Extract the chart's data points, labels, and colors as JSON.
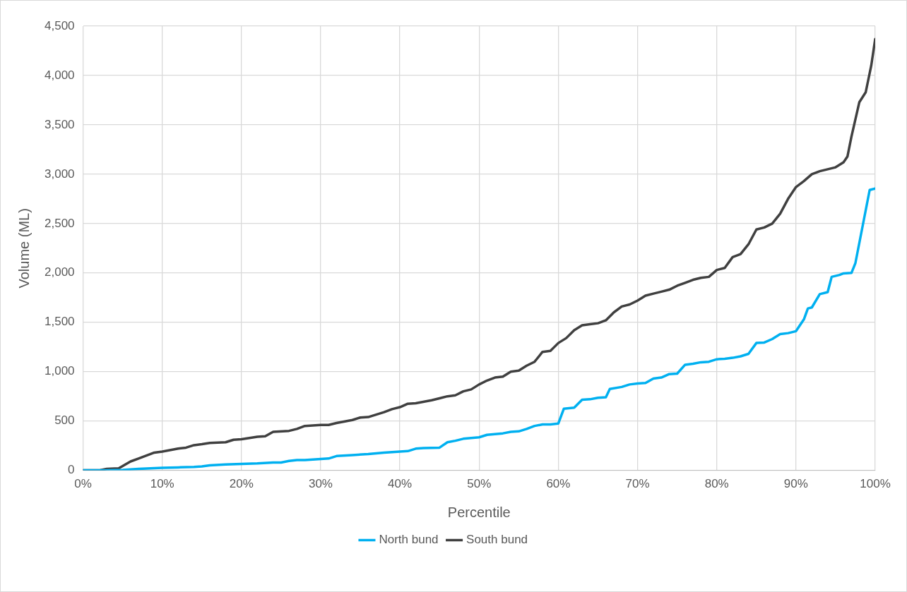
{
  "chart_data": {
    "type": "line",
    "xlabel": "Percentile",
    "ylabel": "Volume (ML)",
    "xlim": [
      0,
      100
    ],
    "xticks": [
      {
        "value": 0,
        "label": "0%"
      },
      {
        "value": 10,
        "label": "10%"
      },
      {
        "value": 20,
        "label": "20%"
      },
      {
        "value": 30,
        "label": "30%"
      },
      {
        "value": 40,
        "label": "40%"
      },
      {
        "value": 50,
        "label": "50%"
      },
      {
        "value": 60,
        "label": "60%"
      },
      {
        "value": 70,
        "label": "70%"
      },
      {
        "value": 80,
        "label": "80%"
      },
      {
        "value": 90,
        "label": "90%"
      },
      {
        "value": 100,
        "label": "100%"
      }
    ],
    "ylim": [
      0,
      4500
    ],
    "yticks": [
      0,
      500,
      {
        "value": 1000,
        "label": "1,000"
      },
      {
        "value": 1500,
        "label": "1,500"
      },
      {
        "value": 2000,
        "label": "2,000"
      },
      {
        "value": 2500,
        "label": "2,500"
      },
      {
        "value": 3000,
        "label": "3,000"
      },
      {
        "value": 3500,
        "label": "3,500"
      },
      {
        "value": 4000,
        "label": "4,000"
      },
      {
        "value": 4500,
        "label": "4,500"
      }
    ],
    "grid": true,
    "legend": "bottom",
    "marker": "none",
    "line_style": "solid",
    "series": [
      {
        "name": "North bund",
        "color": "#00b0f0",
        "x": [
          0,
          3,
          5,
          7,
          10,
          12,
          14,
          15,
          16,
          18,
          20,
          22,
          24,
          25,
          26,
          27,
          28,
          30,
          31,
          32,
          34,
          36,
          38,
          40,
          41,
          42,
          43,
          45,
          46,
          47,
          48,
          50,
          51,
          53,
          54,
          55,
          56,
          57,
          58,
          59,
          60,
          60.7,
          62,
          63,
          64,
          65,
          66,
          66.5,
          68,
          69,
          70,
          71,
          72,
          73,
          74,
          75,
          76,
          77,
          78,
          79,
          80,
          81,
          82,
          83,
          84,
          85,
          86,
          87,
          88,
          89,
          90,
          91,
          91.5,
          92,
          93,
          94,
          94.5,
          95.5,
          96,
          97,
          97.5,
          99.3,
          100
        ],
        "values": [
          0,
          0,
          5,
          15,
          25,
          30,
          35,
          40,
          50,
          60,
          65,
          70,
          80,
          80,
          95,
          105,
          105,
          115,
          120,
          145,
          155,
          165,
          180,
          190,
          195,
          220,
          225,
          230,
          285,
          300,
          320,
          335,
          360,
          375,
          390,
          395,
          420,
          450,
          465,
          465,
          475,
          625,
          635,
          715,
          720,
          735,
          740,
          825,
          845,
          870,
          880,
          885,
          930,
          940,
          975,
          980,
          1070,
          1080,
          1095,
          1100,
          1125,
          1130,
          1140,
          1155,
          1180,
          1290,
          1295,
          1330,
          1380,
          1390,
          1410,
          1530,
          1640,
          1650,
          1785,
          1805,
          1960,
          1980,
          1995,
          2000,
          2100,
          2840,
          2855
        ]
      },
      {
        "name": "South bund",
        "color": "#404040",
        "x": [
          0,
          2,
          3,
          4.5,
          6,
          7,
          8,
          9,
          10,
          12,
          13,
          14,
          15,
          16,
          18,
          19,
          20,
          22,
          23,
          24,
          26,
          27,
          28,
          30,
          31,
          32,
          34,
          35,
          36,
          38,
          39,
          40,
          41,
          42,
          44,
          45,
          46,
          47,
          48,
          49,
          50,
          51,
          52,
          53,
          54,
          55,
          56,
          57,
          58,
          59,
          60,
          61,
          62,
          63,
          64,
          65,
          66,
          67,
          68,
          69,
          70,
          71,
          72,
          73,
          74,
          75,
          76,
          77,
          78,
          79,
          80,
          81,
          82,
          83,
          84,
          85,
          86,
          87,
          88,
          89,
          90,
          91,
          92,
          93,
          94,
          95,
          96,
          96.5,
          97,
          98,
          98.8,
          99.5,
          100
        ],
        "values": [
          0,
          0,
          15,
          20,
          90,
          120,
          150,
          180,
          190,
          220,
          230,
          255,
          265,
          278,
          285,
          310,
          315,
          340,
          345,
          390,
          400,
          420,
          450,
          460,
          460,
          480,
          510,
          535,
          540,
          590,
          620,
          640,
          675,
          680,
          710,
          730,
          750,
          760,
          800,
          820,
          870,
          910,
          940,
          950,
          1000,
          1010,
          1060,
          1100,
          1200,
          1210,
          1290,
          1340,
          1420,
          1470,
          1480,
          1490,
          1520,
          1600,
          1660,
          1680,
          1720,
          1770,
          1790,
          1810,
          1830,
          1870,
          1900,
          1930,
          1950,
          1960,
          2030,
          2050,
          2160,
          2190,
          2290,
          2440,
          2460,
          2500,
          2600,
          2750,
          2870,
          2930,
          3000,
          3030,
          3050,
          3070,
          3120,
          3180,
          3380,
          3730,
          3830,
          4100,
          4370
        ]
      }
    ]
  }
}
